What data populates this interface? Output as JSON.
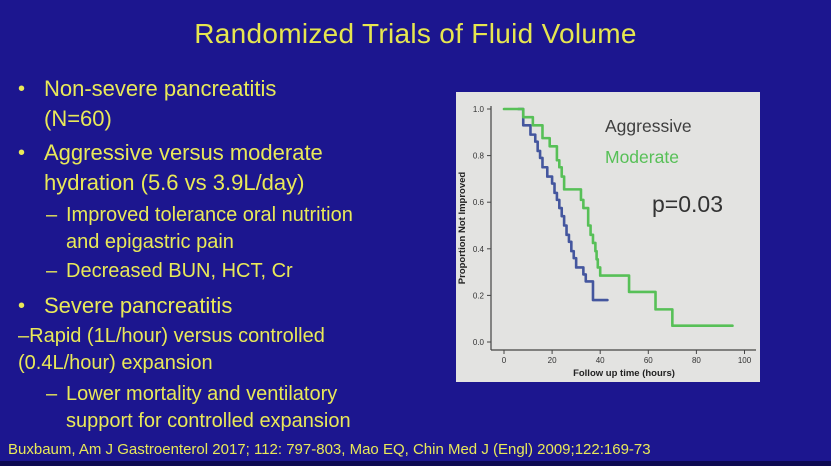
{
  "slide": {
    "title": "Randomized Trials of Fluid Volume",
    "bullets": [
      {
        "level": 1,
        "marker": "•",
        "text": "Non-severe pancreatitis\n(N=60)"
      },
      {
        "level": 1,
        "marker": "•",
        "text": "Aggressive versus moderate\nhydration (5.6 vs 3.9L/day)"
      },
      {
        "level": 2,
        "marker": "–",
        "text": "Improved tolerance oral nutrition\nand epigastric pain"
      },
      {
        "level": 2,
        "marker": "–",
        "text": "Decreased BUN, HCT, Cr"
      },
      {
        "level": 1,
        "marker": "•",
        "text": "Severe pancreatitis"
      },
      {
        "level": 2,
        "marker": "",
        "text": "–Rapid (1L/hour) versus controlled\n(0.4L/hour) expansion"
      },
      {
        "level": 2,
        "marker": "–",
        "text": "Lower mortality and ventilatory\nsupport for controlled expansion"
      }
    ],
    "citation": "Buxbaum, Am J Gastroenterol 2017; 112: 797-803, Mao EQ, Chin Med J (Engl) 2009;122:169-73",
    "colors": {
      "background": "#1c168f",
      "text_yellow": "#e9e958",
      "chart_panel_bg": "#e3e3e1"
    }
  },
  "chart_data": {
    "type": "line",
    "subtype": "kaplan-meier-step",
    "title": "",
    "xlabel": "Follow up time (hours)",
    "ylabel": "Proportion Not Improved",
    "xlim": [
      0,
      100
    ],
    "ylim": [
      0.0,
      1.0
    ],
    "xticks": [
      0,
      20,
      40,
      60,
      80,
      100
    ],
    "yticks": [
      0.0,
      0.2,
      0.4,
      0.6,
      0.8,
      1.0
    ],
    "grid": false,
    "annotation": "p=0.03",
    "legend_position": "upper-right-inside",
    "legend": [
      {
        "label": "Aggressive",
        "text_color": "#3f3f3f"
      },
      {
        "label": "Moderate",
        "text_color": "#57c057"
      }
    ],
    "series": [
      {
        "name": "Aggressive",
        "color": "#44569e",
        "end_x": 43,
        "steps": [
          [
            6,
            1.0
          ],
          [
            8,
            0.93
          ],
          [
            11,
            0.89
          ],
          [
            13,
            0.86
          ],
          [
            14,
            0.82
          ],
          [
            15,
            0.79
          ],
          [
            16,
            0.75
          ],
          [
            18,
            0.71
          ],
          [
            20,
            0.68
          ],
          [
            21,
            0.64
          ],
          [
            22,
            0.61
          ],
          [
            23,
            0.575
          ],
          [
            24,
            0.54
          ],
          [
            25,
            0.5
          ],
          [
            26,
            0.46
          ],
          [
            27,
            0.43
          ],
          [
            28,
            0.39
          ],
          [
            29,
            0.36
          ],
          [
            30,
            0.32
          ],
          [
            33,
            0.29
          ],
          [
            34,
            0.26
          ],
          [
            37,
            0.18
          ]
        ]
      },
      {
        "name": "Moderate",
        "color": "#57c057",
        "end_x": 95,
        "steps": [
          [
            0,
            1.0
          ],
          [
            8,
            0.965
          ],
          [
            12,
            0.93
          ],
          [
            16,
            0.875
          ],
          [
            19,
            0.84
          ],
          [
            22,
            0.78
          ],
          [
            23,
            0.75
          ],
          [
            24,
            0.71
          ],
          [
            25,
            0.655
          ],
          [
            32,
            0.61
          ],
          [
            33,
            0.575
          ],
          [
            35,
            0.5
          ],
          [
            36,
            0.46
          ],
          [
            37,
            0.425
          ],
          [
            38,
            0.39
          ],
          [
            38.5,
            0.355
          ],
          [
            39,
            0.32
          ],
          [
            40,
            0.285
          ],
          [
            52,
            0.215
          ],
          [
            63,
            0.14
          ],
          [
            70,
            0.07
          ]
        ]
      }
    ]
  }
}
